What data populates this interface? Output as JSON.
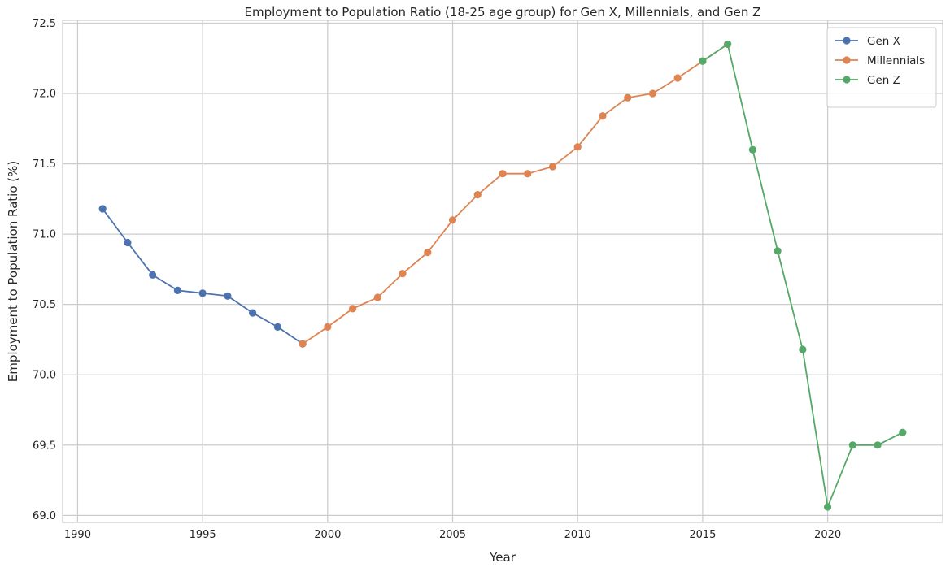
{
  "chart_data": {
    "type": "line",
    "title": "Employment to Population Ratio (18-25 age group) for Gen X, Millennials, and Gen Z",
    "xlabel": "Year",
    "ylabel": "Employment to Population Ratio (%)",
    "xlim": [
      1989.4,
      2024.6
    ],
    "ylim": [
      68.95,
      72.52
    ],
    "xticks": [
      1990,
      1995,
      2000,
      2005,
      2010,
      2015,
      2020
    ],
    "xtick_labels": [
      "1990",
      "1995",
      "2000",
      "2005",
      "2010",
      "2015",
      "2020"
    ],
    "yticks": [
      69.0,
      69.5,
      70.0,
      70.5,
      71.0,
      71.5,
      72.0,
      72.5
    ],
    "ytick_labels": [
      "69.0",
      "69.5",
      "70.0",
      "70.5",
      "71.0",
      "71.5",
      "72.0",
      "72.5"
    ],
    "grid": true,
    "legend_position": "top-right",
    "series": [
      {
        "name": "Gen X",
        "color": "#4c72b0",
        "x": [
          1991,
          1992,
          1993,
          1994,
          1995,
          1996,
          1997,
          1998,
          1999
        ],
        "y": [
          71.18,
          70.94,
          70.71,
          70.6,
          70.58,
          70.56,
          70.44,
          70.34,
          70.22
        ]
      },
      {
        "name": "Millennials",
        "color": "#dd8452",
        "x": [
          1999,
          2000,
          2001,
          2002,
          2003,
          2004,
          2005,
          2006,
          2007,
          2008,
          2009,
          2010,
          2011,
          2012,
          2013,
          2014,
          2015,
          2016
        ],
        "y": [
          70.22,
          70.34,
          70.47,
          70.55,
          70.72,
          70.87,
          71.1,
          71.28,
          71.43,
          71.43,
          71.48,
          71.62,
          71.84,
          71.97,
          72.0,
          72.11,
          72.23,
          72.35
        ]
      },
      {
        "name": "Gen Z",
        "color": "#55a868",
        "x": [
          2015,
          2016,
          2017,
          2018,
          2019,
          2020,
          2021,
          2022,
          2023
        ],
        "y": [
          72.23,
          72.35,
          71.6,
          70.88,
          70.18,
          69.06,
          69.5,
          69.5,
          69.59
        ]
      }
    ]
  }
}
